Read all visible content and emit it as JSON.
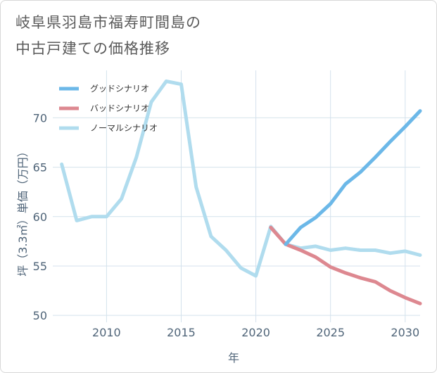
{
  "title_lines": [
    "岐阜県羽島市福寿町間島の",
    "中古戸建ての価格推移"
  ],
  "chart_data": {
    "type": "line",
    "title": "岐阜県羽島市福寿町間島の中古戸建ての価格推移",
    "xlabel": "年",
    "ylabel": "坪（3.3㎡）単価（万円）",
    "xlim": [
      2006.4,
      2031.0
    ],
    "ylim": [
      49.3,
      74.8
    ],
    "xticks": [
      2010,
      2015,
      2020,
      2025,
      2030
    ],
    "yticks": [
      50,
      55,
      60,
      65,
      70
    ],
    "grid": true,
    "legend_position": "top-left",
    "series": [
      {
        "name": "グッドシナリオ",
        "color": "#6cb8e8",
        "x": [
          2022,
          2023,
          2024,
          2025,
          2026,
          2027,
          2028,
          2029,
          2030,
          2031
        ],
        "values": [
          57.2,
          58.9,
          59.9,
          61.3,
          63.3,
          64.5,
          66.0,
          67.6,
          69.1,
          70.7
        ]
      },
      {
        "name": "バッドシナリオ",
        "color": "#dd8890",
        "x": [
          2021,
          2022,
          2023,
          2024,
          2025,
          2026,
          2027,
          2028,
          2029,
          2030,
          2031
        ],
        "values": [
          58.9,
          57.2,
          56.6,
          55.9,
          54.9,
          54.3,
          53.8,
          53.4,
          52.5,
          51.8,
          51.2
        ]
      },
      {
        "name": "ノーマルシナリオ",
        "color": "#b0dcee",
        "x": [
          2007,
          2008,
          2009,
          2010,
          2011,
          2012,
          2013,
          2014,
          2015,
          2016,
          2017,
          2018,
          2019,
          2020,
          2021,
          2022,
          2023,
          2024,
          2025,
          2026,
          2027,
          2028,
          2029,
          2030,
          2031
        ],
        "values": [
          65.3,
          59.6,
          60.0,
          60.0,
          61.8,
          66.0,
          71.6,
          73.7,
          73.4,
          63.0,
          58.0,
          56.6,
          54.8,
          54.0,
          59.0,
          57.2,
          56.8,
          57.0,
          56.6,
          56.8,
          56.6,
          56.6,
          56.3,
          56.5,
          56.1
        ]
      }
    ]
  }
}
